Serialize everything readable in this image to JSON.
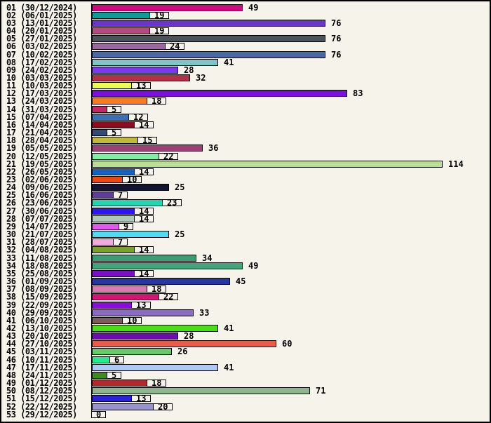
{
  "chart_data": {
    "type": "bar",
    "orientation": "horizontal",
    "title": "",
    "xlabel": "",
    "ylabel": "",
    "xlim": [
      0,
      114
    ],
    "grid": false,
    "legend": false,
    "background_color": "#F5F3EA",
    "border_color": "#000000",
    "rows": [
      {
        "label": "01 (30/12/2024)",
        "value": 49,
        "color": "#D20880"
      },
      {
        "label": "02 (06/01/2025)",
        "value": 19,
        "color": "#0A9E96"
      },
      {
        "label": "03 (13/01/2025)",
        "value": 76,
        "color": "#6A35C8"
      },
      {
        "label": "04 (20/01/2025)",
        "value": 19,
        "color": "#B44A80"
      },
      {
        "label": "05 (27/01/2025)",
        "value": 76,
        "color": "#4A525A"
      },
      {
        "label": "06 (03/02/2025)",
        "value": 24,
        "color": "#9C68A2"
      },
      {
        "label": "07 (10/02/2025)",
        "value": 76,
        "color": "#4A68A4"
      },
      {
        "label": "08 (17/02/2025)",
        "value": 41,
        "color": "#7EC6C6"
      },
      {
        "label": "09 (24/02/2025)",
        "value": 28,
        "color": "#7A38F0"
      },
      {
        "label": "10 (03/03/2025)",
        "value": 32,
        "color": "#B43046"
      },
      {
        "label": "11 (10/03/2025)",
        "value": 13,
        "color": "#EEFB55"
      },
      {
        "label": "12 (17/03/2025)",
        "value": 83,
        "color": "#7B10DE"
      },
      {
        "label": "13 (24/03/2025)",
        "value": 18,
        "color": "#F87C1E"
      },
      {
        "label": "14 (31/03/2025)",
        "value": 5,
        "color": "#C42866"
      },
      {
        "label": "15 (07/04/2025)",
        "value": 12,
        "color": "#3E6EB2"
      },
      {
        "label": "16 (14/04/2025)",
        "value": 14,
        "color": "#8E0C20"
      },
      {
        "label": "17 (21/04/2025)",
        "value": 5,
        "color": "#2F4C76"
      },
      {
        "label": "18 (28/04/2025)",
        "value": 15,
        "color": "#C0B838"
      },
      {
        "label": "19 (05/05/2025)",
        "value": 36,
        "color": "#9E4076"
      },
      {
        "label": "20 (12/05/2025)",
        "value": 22,
        "color": "#82EEA4"
      },
      {
        "label": "21 (19/05/2025)",
        "value": 114,
        "color": "#B9E092"
      },
      {
        "label": "22 (26/05/2025)",
        "value": 14,
        "color": "#1462C2"
      },
      {
        "label": "23 (02/06/2025)",
        "value": 10,
        "color": "#EA4A12"
      },
      {
        "label": "24 (09/06/2025)",
        "value": 25,
        "color": "#131230"
      },
      {
        "label": "25 (16/06/2025)",
        "value": 7,
        "color": "#5F3E9A"
      },
      {
        "label": "26 (23/06/2025)",
        "value": 23,
        "color": "#22D6B2"
      },
      {
        "label": "27 (30/06/2025)",
        "value": 14,
        "color": "#2C16F2"
      },
      {
        "label": "28 (07/07/2025)",
        "value": 14,
        "color": "#B0C8BA"
      },
      {
        "label": "29 (14/07/2025)",
        "value": 9,
        "color": "#E258EA"
      },
      {
        "label": "30 (21/07/2025)",
        "value": 25,
        "color": "#52DAF0"
      },
      {
        "label": "31 (28/07/2025)",
        "value": 7,
        "color": "#F2AAE0"
      },
      {
        "label": "32 (04/08/2025)",
        "value": 14,
        "color": "#7CA02A"
      },
      {
        "label": "33 (11/08/2025)",
        "value": 34,
        "color": "#3E9C74"
      },
      {
        "label": "34 (18/08/2025)",
        "value": 49,
        "color": "#42A47A"
      },
      {
        "label": "35 (25/08/2025)",
        "value": 14,
        "color": "#7C0ECA"
      },
      {
        "label": "36 (01/09/2025)",
        "value": 45,
        "color": "#2636A2"
      },
      {
        "label": "37 (08/09/2025)",
        "value": 18,
        "color": "#DA7AB0"
      },
      {
        "label": "38 (15/09/2025)",
        "value": 22,
        "color": "#D41672"
      },
      {
        "label": "39 (22/09/2025)",
        "value": 13,
        "color": "#8A0EDA"
      },
      {
        "label": "40 (29/09/2025)",
        "value": 33,
        "color": "#8C6CC2"
      },
      {
        "label": "41 (06/10/2025)",
        "value": 10,
        "color": "#7C5C5A"
      },
      {
        "label": "42 (13/10/2025)",
        "value": 41,
        "color": "#48E012"
      },
      {
        "label": "43 (20/10/2025)",
        "value": 28,
        "color": "#6C0CAC"
      },
      {
        "label": "44 (27/10/2025)",
        "value": 60,
        "color": "#EA5C4A"
      },
      {
        "label": "45 (03/11/2025)",
        "value": 26,
        "color": "#66CA68"
      },
      {
        "label": "46 (10/11/2025)",
        "value": 6,
        "color": "#22EA8E"
      },
      {
        "label": "47 (17/11/2025)",
        "value": 41,
        "color": "#ACCAF4"
      },
      {
        "label": "48 (24/11/2025)",
        "value": 5,
        "color": "#3C8C1A"
      },
      {
        "label": "49 (01/12/2025)",
        "value": 18,
        "color": "#B2282C"
      },
      {
        "label": "50 (08/12/2025)",
        "value": 71,
        "color": "#8EB68C"
      },
      {
        "label": "51 (15/12/2025)",
        "value": 13,
        "color": "#2C22DA"
      },
      {
        "label": "52 (22/12/2025)",
        "value": 20,
        "color": "#9892CE"
      },
      {
        "label": "53 (29/12/2025)",
        "value": 0,
        "color": null
      }
    ]
  }
}
